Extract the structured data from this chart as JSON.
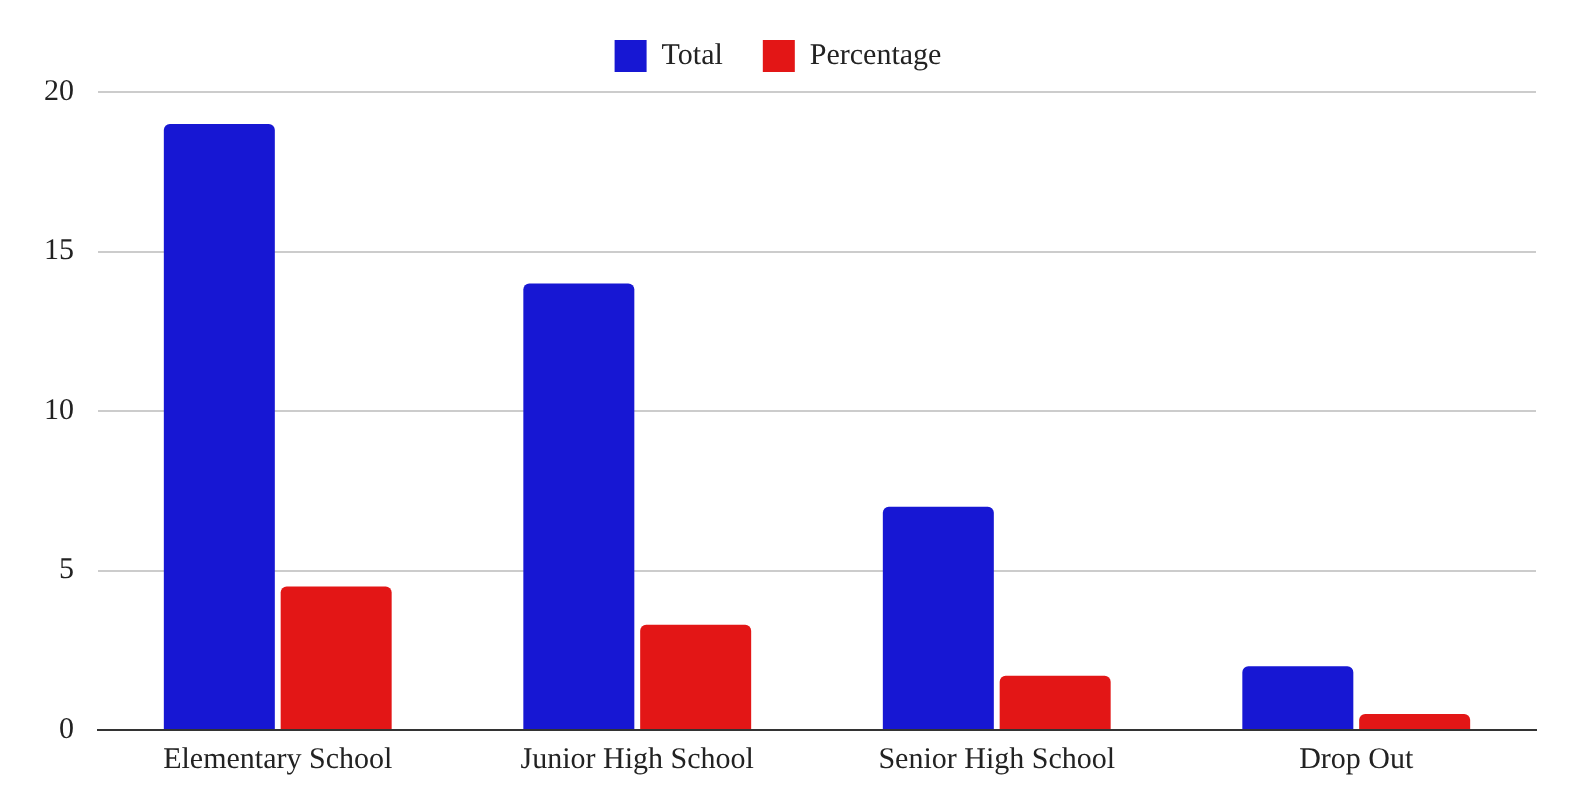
{
  "chart_data": {
    "type": "bar",
    "categories": [
      "Elementary School",
      "Junior High School",
      "Senior High School",
      "Drop Out"
    ],
    "series": [
      {
        "name": "Total",
        "color": "#1717d3",
        "values": [
          19,
          14,
          7,
          2
        ]
      },
      {
        "name": "Percentage",
        "color": "#e31616",
        "values": [
          4.5,
          3.3,
          1.7,
          0.5
        ]
      }
    ],
    "ylim": [
      0,
      20
    ],
    "yticks": [
      0,
      5,
      10,
      15,
      20
    ],
    "grid": "y",
    "legend": "top"
  }
}
